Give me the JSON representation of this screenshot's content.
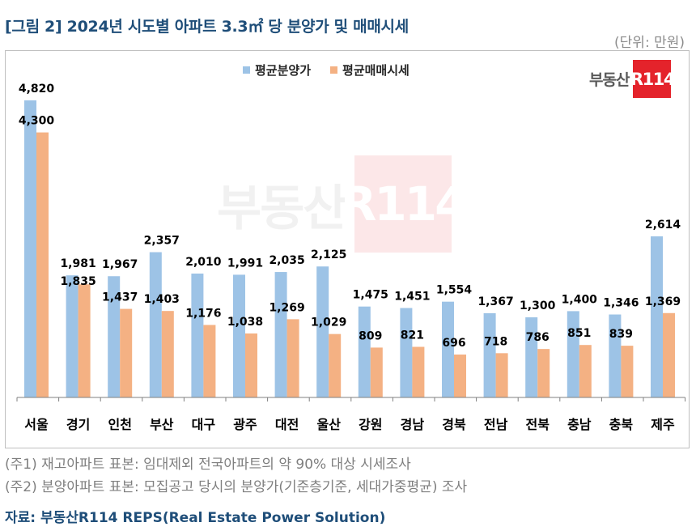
{
  "title": "[그림 2] 2024년 시도별 아파트 3.3㎡ 당 분양가 및 매매시세",
  "unit_label": "(단위: 만원)",
  "logo": {
    "text": "부동산",
    "box": "R114"
  },
  "colors": {
    "series_supply": "#9dc3e6",
    "series_trade": "#f4b183",
    "title": "#1f4e79",
    "logo_red": "#e4232b"
  },
  "chart_data": {
    "type": "bar",
    "categories": [
      "서울",
      "경기",
      "인천",
      "부산",
      "대구",
      "광주",
      "대전",
      "울산",
      "강원",
      "경남",
      "경북",
      "전남",
      "전북",
      "충남",
      "충북",
      "제주"
    ],
    "series": [
      {
        "name": "평균분양가",
        "values": [
          4820,
          1981,
          1967,
          2357,
          2010,
          1991,
          2035,
          2125,
          1475,
          1451,
          1554,
          1367,
          1300,
          1400,
          1346,
          2614
        ]
      },
      {
        "name": "평균매매시세",
        "values": [
          4300,
          1835,
          1437,
          1403,
          1176,
          1038,
          1269,
          1029,
          809,
          821,
          696,
          718,
          786,
          851,
          839,
          1369
        ]
      }
    ],
    "value_labels": [
      [
        "4,820",
        "1,981",
        "1,967",
        "2,357",
        "2,010",
        "1,991",
        "2,035",
        "2,125",
        "1,475",
        "1,451",
        "1,554",
        "1,367",
        "1,300",
        "1,400",
        "1,346",
        "2,614"
      ],
      [
        "4,300",
        "1,835",
        "1,437",
        "1,403",
        "1,176",
        "1,038",
        "1,269",
        "1,029",
        "809",
        "821",
        "696",
        "718",
        "786",
        "851",
        "839",
        "1,369"
      ]
    ],
    "ylim": [
      0,
      5000
    ],
    "grid": false,
    "legend_position": "top"
  },
  "notes": [
    "(주1) 재고아파트 표본: 임대제외 전국아파트의 약 90% 대상 시세조사",
    "(주2) 분양아파트 표본: 모집공고 당시의 분양가(기준층기준, 세대가중평균) 조사"
  ],
  "source": "자료: 부동산R114 REPS(Real Estate Power Solution)"
}
